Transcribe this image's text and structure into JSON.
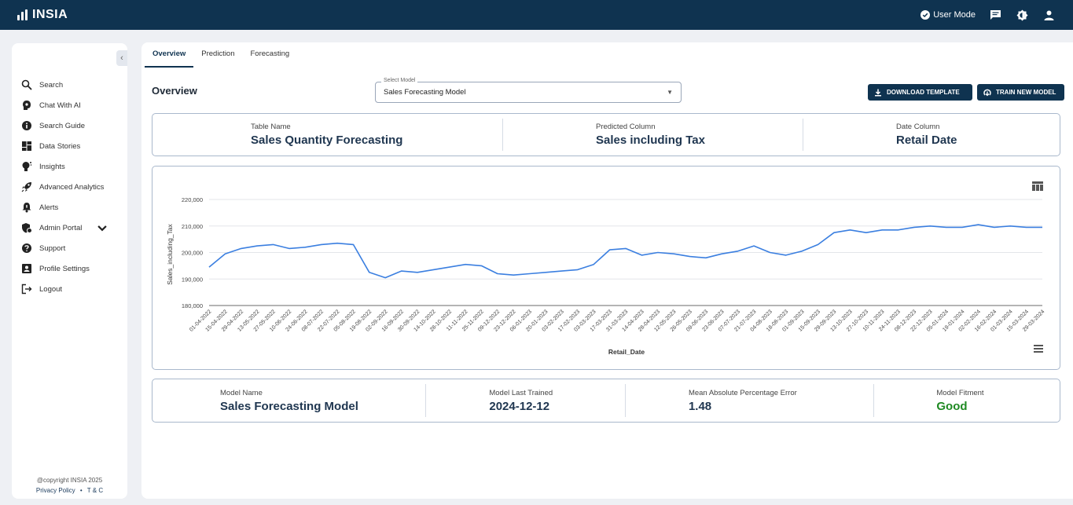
{
  "app": {
    "name": "INSIA",
    "user_mode": "User Mode"
  },
  "sidebar": {
    "items": [
      {
        "label": "Search",
        "icon": "search-icon"
      },
      {
        "label": "Chat With AI",
        "icon": "chat-ai-icon"
      },
      {
        "label": "Search Guide",
        "icon": "info-icon"
      },
      {
        "label": "Data Stories",
        "icon": "dashboard-icon"
      },
      {
        "label": "Insights",
        "icon": "lightbulb-icon"
      },
      {
        "label": "Advanced Analytics",
        "icon": "rocket-icon"
      },
      {
        "label": "Alerts",
        "icon": "bell-icon"
      },
      {
        "label": "Admin Portal",
        "icon": "admin-icon"
      },
      {
        "label": "Support",
        "icon": "help-icon"
      },
      {
        "label": "Profile Settings",
        "icon": "profile-icon"
      },
      {
        "label": "Logout",
        "icon": "logout-icon"
      }
    ],
    "copyright": "@copyright INSIA 2025",
    "privacy": "Privacy Policy",
    "separator": "•",
    "terms": "T & C"
  },
  "tabs": [
    "Overview",
    "Prediction",
    "Forecasting"
  ],
  "header": {
    "title": "Overview",
    "select_label": "Select Model",
    "select_value": "Sales Forecasting Model",
    "download_label": "DOWNLOAD TEMPLATE",
    "train_label": "TRAIN NEW MODEL"
  },
  "table_info": {
    "table_name_label": "Table Name",
    "table_name": "Sales Quantity Forecasting",
    "predicted_label": "Predicted Column",
    "predicted": "Sales including Tax",
    "date_label": "Date Column",
    "date": "Retail Date"
  },
  "model_info": {
    "name_label": "Model Name",
    "name": "Sales Forecasting Model",
    "trained_label": "Model Last Trained",
    "trained": "2024-12-12",
    "mape_label": "Mean Absolute Percentage Error",
    "mape": "1.48",
    "fitment_label": "Model Fitment",
    "fitment": "Good",
    "fitment_color": "#1f8a23"
  },
  "chart_data": {
    "type": "line",
    "xlabel": "Retail_Date",
    "ylabel": "Sales_including_Tax",
    "ylim": [
      180000,
      220000
    ],
    "yticks": [
      "180,000",
      "190,000",
      "200,000",
      "210,000",
      "220,000"
    ],
    "grid": true,
    "line_color": "#3b7fe0",
    "x": [
      "01-04-2022",
      "15-04-2022",
      "29-04-2022",
      "13-05-2022",
      "27-05-2022",
      "10-06-2022",
      "24-06-2022",
      "08-07-2022",
      "22-07-2022",
      "05-08-2022",
      "19-08-2022",
      "02-09-2022",
      "16-09-2022",
      "30-09-2022",
      "14-10-2022",
      "28-10-2022",
      "11-11-2022",
      "25-11-2022",
      "09-12-2022",
      "23-12-2022",
      "06-01-2023",
      "20-01-2023",
      "03-02-2023",
      "17-02-2023",
      "03-03-2023",
      "17-03-2023",
      "31-03-2023",
      "14-04-2023",
      "28-04-2023",
      "12-05-2023",
      "26-05-2023",
      "09-06-2023",
      "23-06-2023",
      "07-07-2023",
      "21-07-2023",
      "04-08-2023",
      "18-08-2023",
      "01-09-2023",
      "15-09-2023",
      "29-09-2023",
      "13-10-2023",
      "27-10-2023",
      "10-11-2023",
      "24-11-2023",
      "08-12-2023",
      "22-12-2023",
      "05-01-2024",
      "19-01-2024",
      "02-02-2024",
      "16-02-2024",
      "01-03-2024",
      "15-03-2024",
      "29-03-2024"
    ],
    "series": [
      {
        "values": [
          194500,
          199500,
          201500,
          202500,
          203000,
          201500,
          202000,
          203000,
          203500,
          203000,
          192500,
          190500,
          193000,
          192500,
          193500,
          194500,
          195500,
          195000,
          192000,
          191500,
          192000,
          192500,
          193000,
          193500,
          195500,
          201000,
          201500,
          199000,
          200000,
          199500,
          198500,
          198000,
          199500,
          200500,
          202500,
          200000,
          199000,
          200500,
          203000,
          207500,
          208500,
          207500,
          208500,
          208500,
          209500,
          210000,
          209500,
          209500,
          210500,
          209500,
          210000,
          209500,
          209500
        ]
      }
    ]
  }
}
